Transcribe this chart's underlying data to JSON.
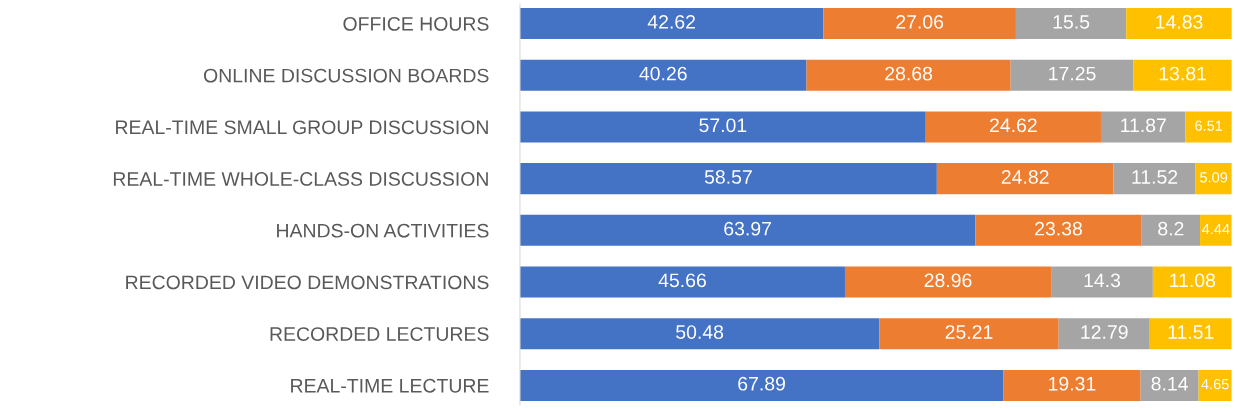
{
  "chart_data": {
    "type": "bar",
    "orientation": "horizontal",
    "stacked": true,
    "tick_labels": "y",
    "data_labels": true,
    "grid": false,
    "legend": false,
    "categories": [
      "OFFICE HOURS",
      "ONLINE DISCUSSION BOARDS",
      "REAL-TIME SMALL GROUP DISCUSSION",
      "REAL-TIME WHOLE-CLASS DISCUSSION",
      "HANDS-ON ACTIVITIES",
      "RECORDED VIDEO DEMONSTRATIONS",
      "RECORDED LECTURES",
      "REAL-TIME LECTURE"
    ],
    "series": [
      {
        "color": "#4472c4",
        "values": [
          42.62,
          40.26,
          57.01,
          58.57,
          63.97,
          45.66,
          50.48,
          67.89
        ]
      },
      {
        "color": "#ed7d31",
        "values": [
          27.06,
          28.68,
          24.62,
          24.82,
          23.38,
          28.96,
          25.21,
          19.31
        ]
      },
      {
        "color": "#a5a5a5",
        "values": [
          15.5,
          17.25,
          11.87,
          11.52,
          8.2,
          14.3,
          12.79,
          8.14
        ]
      },
      {
        "color": "#ffc000",
        "values": [
          14.83,
          13.81,
          6.51,
          5.09,
          4.44,
          11.08,
          11.51,
          4.65
        ]
      }
    ]
  }
}
